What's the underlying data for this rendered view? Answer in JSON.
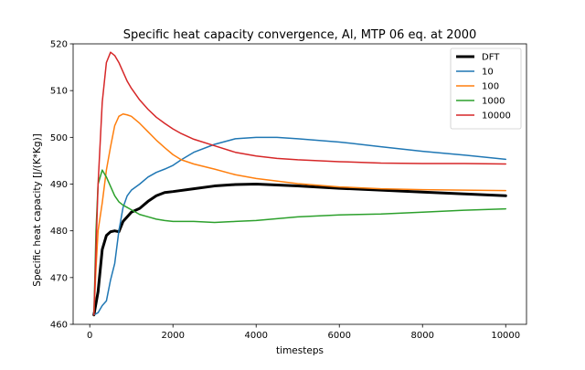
{
  "chart_data": {
    "type": "line",
    "title": "Specific heat capacity convergence, Al, MTP 06 eq. at 2000",
    "xlabel": "timesteps",
    "ylabel": "Specific heat capacity [J/(K*Kg)]",
    "xlim": [
      -400,
      10500
    ],
    "ylim": [
      460,
      520
    ],
    "xticks": [
      0,
      2000,
      4000,
      6000,
      8000,
      10000
    ],
    "yticks": [
      460,
      470,
      480,
      490,
      500,
      510,
      520
    ],
    "legend_position": "top-right",
    "grid": false,
    "series": [
      {
        "name": "DFT",
        "color": "#000000",
        "linewidth": 3,
        "x": [
          100,
          200,
          300,
          400,
          500,
          600,
          700,
          800,
          900,
          1000,
          1200,
          1400,
          1600,
          1800,
          2000,
          2500,
          3000,
          3500,
          4000,
          4500,
          5000,
          6000,
          7000,
          8000,
          9000,
          10000
        ],
        "y": [
          462,
          467,
          476,
          479,
          479.8,
          480,
          479.8,
          482,
          483,
          484,
          484.8,
          486.3,
          487.5,
          488.2,
          488.4,
          489,
          489.6,
          489.9,
          490,
          489.8,
          489.6,
          489.1,
          488.7,
          488.3,
          487.9,
          487.5
        ]
      },
      {
        "name": "10",
        "color": "#1f77b4",
        "linewidth": 1.5,
        "x": [
          100,
          200,
          300,
          400,
          500,
          600,
          700,
          800,
          900,
          1000,
          1200,
          1400,
          1600,
          1800,
          2000,
          2200,
          2500,
          3000,
          3500,
          4000,
          4500,
          5000,
          6000,
          7000,
          8000,
          9000,
          10000
        ],
        "y": [
          462,
          462.5,
          464,
          465,
          469.5,
          473,
          480,
          485,
          487.5,
          488.7,
          490,
          491.5,
          492.5,
          493.2,
          494,
          495.2,
          496.8,
          498.5,
          499.7,
          500,
          500,
          499.7,
          499,
          498,
          497,
          496.2,
          495.3
        ]
      },
      {
        "name": "100",
        "color": "#ff7f0e",
        "linewidth": 1.5,
        "x": [
          100,
          150,
          200,
          300,
          400,
          500,
          600,
          700,
          800,
          900,
          1000,
          1200,
          1400,
          1600,
          1800,
          2000,
          2200,
          2500,
          3000,
          3500,
          4000,
          5000,
          6000,
          7000,
          8000,
          9000,
          10000
        ],
        "y": [
          462,
          472,
          480,
          486,
          493,
          498,
          502.5,
          504.5,
          505,
          504.8,
          504.5,
          503,
          501.2,
          499.4,
          497.8,
          496.3,
          495.2,
          494.3,
          493.2,
          492,
          491.2,
          490.1,
          489.4,
          489,
          488.8,
          488.7,
          488.6
        ]
      },
      {
        "name": "1000",
        "color": "#2ca02c",
        "linewidth": 1.5,
        "x": [
          100,
          150,
          200,
          300,
          400,
          500,
          600,
          700,
          800,
          900,
          1000,
          1200,
          1400,
          1600,
          1800,
          2000,
          2500,
          3000,
          3500,
          4000,
          5000,
          6000,
          7000,
          8000,
          9000,
          10000
        ],
        "y": [
          462,
          480,
          490,
          493,
          491.5,
          489.5,
          487.5,
          486.2,
          485.5,
          485,
          484.5,
          483.5,
          483,
          482.5,
          482.2,
          482,
          482,
          481.8,
          482,
          482.2,
          483,
          483.4,
          483.6,
          484,
          484.4,
          484.7
        ]
      },
      {
        "name": "10000",
        "color": "#d62728",
        "linewidth": 1.5,
        "x": [
          100,
          200,
          300,
          400,
          500,
          600,
          700,
          800,
          900,
          1000,
          1200,
          1400,
          1600,
          1800,
          2000,
          2200,
          2500,
          3000,
          3500,
          4000,
          4500,
          5000,
          6000,
          7000,
          8000,
          9000,
          10000
        ],
        "y": [
          462,
          490,
          507.5,
          516,
          518.2,
          517.5,
          516,
          514,
          512,
          510.5,
          508,
          506,
          504.3,
          503,
          501.8,
          500.8,
          499.6,
          498.2,
          496.8,
          496,
          495.5,
          495.2,
          494.8,
          494.5,
          494.4,
          494.4,
          494.3
        ]
      }
    ]
  }
}
